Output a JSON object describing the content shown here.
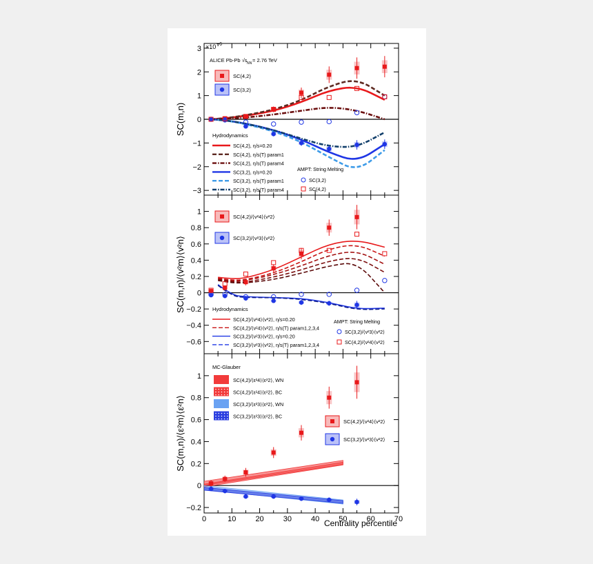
{
  "figure": {
    "x_axis_title": "Centrality percentile",
    "x_ticks": [
      0,
      10,
      20,
      30,
      40,
      50,
      60,
      70
    ]
  },
  "chart_data": [
    {
      "type": "line",
      "panel": "top",
      "ylabel": "SC(m,n)",
      "y_multiplier": "×10",
      "y_multiplier_exp": "−6",
      "xlim": [
        0,
        70
      ],
      "ylim": [
        -3.2,
        3.2
      ],
      "y_ticks": [
        -3,
        -2,
        -1,
        0,
        1,
        2,
        3
      ],
      "header": "ALICE Pb-Pb √s",
      "header_sub": "NN",
      "header_tail": " = 2.76 TeV",
      "data_legend": [
        {
          "label": "SC(4,2)",
          "color": "#e8191b",
          "marker": "square"
        },
        {
          "label": "SC(3,2)",
          "color": "#1f36e5",
          "marker": "circle"
        }
      ],
      "model_title": "Hydrodynamics",
      "model_legend": [
        {
          "label": "SC(4,2), η/s=0.20",
          "color": "#e8191b",
          "dash": "solid"
        },
        {
          "label": "SC(4,2), η/s(T) param1",
          "color": "#5e2a22",
          "dash": "dash"
        },
        {
          "label": "SC(4,2), η/s(T) param4",
          "color": "#6b0f0f",
          "dash": "dashdot"
        },
        {
          "label": "SC(3,2), η/s=0.20",
          "color": "#1f36e5",
          "dash": "solid"
        },
        {
          "label": "SC(3,2), η/s(T) param1",
          "color": "#3d9be8",
          "dash": "dash"
        },
        {
          "label": "SC(3,2), η/s(T) param4",
          "color": "#123f6b",
          "dash": "dashdot"
        }
      ],
      "ampt_title": "AMPT: String Melting",
      "ampt_legend": [
        {
          "label": "SC(3,2)",
          "color": "#1f36e5",
          "marker": "open-circle"
        },
        {
          "label": "SC(4,2)",
          "color": "#e8191b",
          "marker": "open-square"
        }
      ],
      "data_x": [
        2.5,
        7.5,
        15,
        25,
        35,
        45,
        55,
        65
      ],
      "series": [
        {
          "name": "SC(4,2)",
          "kind": "data",
          "values": [
            0.0,
            0.04,
            0.12,
            0.42,
            1.12,
            1.88,
            2.16,
            2.22
          ],
          "errors": [
            0.06,
            0.06,
            0.08,
            0.12,
            0.22,
            0.35,
            0.45,
            0.45
          ],
          "color": "#e8191b",
          "marker": "square"
        },
        {
          "name": "SC(3,2)",
          "kind": "data",
          "values": [
            0.0,
            -0.04,
            -0.3,
            -0.62,
            -1.0,
            -1.25,
            -1.08,
            -1.05
          ],
          "errors": [
            0.04,
            0.05,
            0.07,
            0.1,
            0.12,
            0.15,
            0.2,
            0.2
          ],
          "color": "#1f36e5",
          "marker": "circle"
        },
        {
          "name": "SC(4,2), η/s=0.20",
          "kind": "line",
          "x": [
            2.5,
            7.5,
            15,
            25,
            35,
            45,
            55,
            65
          ],
          "values": [
            0.0,
            0.04,
            0.15,
            0.35,
            0.72,
            1.22,
            1.4,
            0.82
          ],
          "color": "#e8191b",
          "dash": "solid"
        },
        {
          "name": "SC(4,2), η/s(T) param1",
          "kind": "line",
          "x": [
            2.5,
            7.5,
            15,
            25,
            35,
            45,
            55,
            65
          ],
          "values": [
            0.0,
            0.04,
            0.17,
            0.4,
            0.8,
            1.4,
            1.72,
            1.0
          ],
          "color": "#5e2a22",
          "dash": "dash"
        },
        {
          "name": "SC(4,2), η/s(T) param4",
          "kind": "line",
          "x": [
            2.5,
            7.5,
            15,
            25,
            35,
            45,
            55,
            65
          ],
          "values": [
            0.0,
            0.02,
            0.07,
            0.2,
            0.36,
            0.52,
            0.38,
            0.0
          ],
          "color": "#6b0f0f",
          "dash": "dashdot"
        },
        {
          "name": "SC(3,2), η/s=0.20",
          "kind": "line",
          "x": [
            2.5,
            7.5,
            15,
            25,
            35,
            45,
            55,
            65
          ],
          "values": [
            0.0,
            -0.04,
            -0.18,
            -0.45,
            -0.85,
            -1.4,
            -1.8,
            -1.05
          ],
          "color": "#1f36e5",
          "dash": "solid"
        },
        {
          "name": "SC(3,2), η/s(T) param1",
          "kind": "line",
          "x": [
            2.5,
            7.5,
            15,
            25,
            35,
            45,
            55,
            65
          ],
          "values": [
            0.0,
            -0.04,
            -0.2,
            -0.5,
            -0.95,
            -1.6,
            -2.2,
            -1.3
          ],
          "color": "#3d9be8",
          "dash": "dash"
        },
        {
          "name": "SC(3,2), η/s(T) param4",
          "kind": "line",
          "x": [
            2.5,
            7.5,
            15,
            25,
            35,
            45,
            55,
            65
          ],
          "values": [
            0.0,
            -0.04,
            -0.18,
            -0.45,
            -0.82,
            -1.15,
            -1.18,
            -0.55
          ],
          "color": "#123f6b",
          "dash": "dashdot"
        },
        {
          "name": "AMPT SC(3,2)",
          "kind": "data",
          "values": [
            0.0,
            -0.02,
            -0.12,
            -0.2,
            -0.12,
            -0.1,
            0.28,
            0.95
          ],
          "errors": [
            0,
            0,
            0,
            0,
            0,
            0,
            0,
            0
          ],
          "color": "#1f36e5",
          "marker": "open-circle"
        },
        {
          "name": "AMPT SC(4,2)",
          "kind": "data",
          "values": [
            0.0,
            0.02,
            0.12,
            0.42,
            0.92,
            0.92,
            1.3,
            0.95
          ],
          "errors": [
            0,
            0,
            0,
            0,
            0,
            0,
            0,
            0
          ],
          "color": "#e8191b",
          "marker": "open-square"
        }
      ]
    },
    {
      "type": "line",
      "panel": "middle",
      "ylabel": "SC(m,n)/⟨v²m⟩⟨v²n⟩",
      "xlim": [
        0,
        70
      ],
      "ylim": [
        -0.75,
        1.2
      ],
      "y_ticks": [
        -0.6,
        -0.4,
        -0.2,
        0,
        0.2,
        0.4,
        0.6,
        0.8,
        1
      ],
      "y_tick_labels": [
        "−0.6",
        "−0.4",
        "−0.2",
        "0",
        "0.2",
        "0.4",
        "0.6",
        "0.8",
        "1"
      ],
      "data_legend": [
        {
          "label": "SC(4,2)/⟨v²4⟩⟨v²2⟩",
          "color": "#e8191b",
          "marker": "square"
        },
        {
          "label": "SC(3,2)/⟨v²3⟩⟨v²2⟩",
          "color": "#1f36e5",
          "marker": "circle"
        }
      ],
      "model_title": "Hydrodynamics",
      "model_legend": [
        {
          "label": "SC(4,2)/⟨v²4⟩⟨v²2⟩, η/s=0.20",
          "color": "#e8191b",
          "dash": "solid"
        },
        {
          "label": "SC(4,2)/⟨v²4⟩⟨v²2⟩, η/s(T) param1,2,3,4",
          "color": "#c81414",
          "dash": "dash"
        },
        {
          "label": "SC(3,2)/⟨v²3⟩⟨v²2⟩, η/s=0.20",
          "color": "#1f36e5",
          "dash": "solid"
        },
        {
          "label": "SC(3,2)/⟨v²3⟩⟨v²2⟩, η/s(T) param1,2,3,4",
          "color": "#1f36e5",
          "dash": "dash"
        }
      ],
      "ampt_title": "AMPT: String Melting",
      "ampt_legend": [
        {
          "label": "SC(3,2)/⟨v²3⟩⟨v²2⟩",
          "color": "#1f36e5",
          "marker": "open-circle"
        },
        {
          "label": "SC(4,2)/⟨v²4⟩⟨v²2⟩",
          "color": "#e8191b",
          "marker": "open-square"
        }
      ],
      "data_x": [
        2.5,
        7.5,
        15,
        25,
        35,
        45,
        55,
        65
      ],
      "series": [
        {
          "name": "SC(4,2)/⟨v²4⟩⟨v²2⟩",
          "kind": "data",
          "values": [
            0.02,
            0.06,
            0.13,
            0.3,
            0.48,
            0.8,
            0.93,
            0.0
          ],
          "errors": [
            0.03,
            0.03,
            0.04,
            0.05,
            0.07,
            0.1,
            0.15,
            0
          ],
          "color": "#e8191b",
          "marker": "square",
          "points": 7
        },
        {
          "name": "SC(3,2)/⟨v²3⟩⟨v²2⟩",
          "kind": "data",
          "values": [
            -0.03,
            -0.04,
            -0.07,
            -0.1,
            -0.12,
            -0.13,
            -0.15,
            0.0
          ],
          "errors": [
            0.02,
            0.02,
            0.02,
            0.02,
            0.03,
            0.03,
            0.05,
            0
          ],
          "color": "#1f36e5",
          "marker": "circle",
          "points": 7
        },
        {
          "name": "hydro SC(4,2) η/s=0.20",
          "kind": "line",
          "x": [
            5,
            10,
            15,
            25,
            35,
            45,
            55,
            65
          ],
          "values": [
            0.19,
            0.17,
            0.18,
            0.28,
            0.44,
            0.6,
            0.65,
            0.56
          ],
          "color": "#e8191b",
          "dash": "solid"
        },
        {
          "name": "hydro SC(4,2) param1",
          "kind": "line",
          "x": [
            5,
            10,
            15,
            25,
            35,
            45,
            55,
            65
          ],
          "values": [
            0.18,
            0.15,
            0.16,
            0.24,
            0.38,
            0.54,
            0.6,
            0.45
          ],
          "color": "#c81414",
          "dash": "dash"
        },
        {
          "name": "hydro SC(4,2) param2",
          "kind": "line",
          "x": [
            5,
            10,
            15,
            25,
            35,
            45,
            55,
            65
          ],
          "values": [
            0.17,
            0.14,
            0.15,
            0.22,
            0.33,
            0.46,
            0.52,
            0.35
          ],
          "color": "#a31010",
          "dash": "dash"
        },
        {
          "name": "hydro SC(4,2) param3",
          "kind": "line",
          "x": [
            5,
            10,
            15,
            25,
            35,
            45,
            55,
            65
          ],
          "values": [
            0.16,
            0.13,
            0.13,
            0.19,
            0.28,
            0.39,
            0.44,
            0.25
          ],
          "color": "#7a0c0c",
          "dash": "dash"
        },
        {
          "name": "hydro SC(4,2) param4",
          "kind": "line",
          "x": [
            5,
            10,
            15,
            25,
            35,
            45,
            55,
            65
          ],
          "values": [
            0.15,
            0.12,
            0.12,
            0.16,
            0.24,
            0.33,
            0.38,
            0.0
          ],
          "color": "#5a0808",
          "dash": "dash"
        },
        {
          "name": "hydro SC(3,2) η/s=0.20",
          "kind": "line",
          "x": [
            5,
            10,
            15,
            25,
            35,
            45,
            55,
            65
          ],
          "values": [
            0.1,
            -0.03,
            -0.05,
            -0.06,
            -0.07,
            -0.12,
            -0.2,
            -0.19
          ],
          "color": "#1f36e5",
          "dash": "solid"
        },
        {
          "name": "hydro SC(3,2) params",
          "kind": "line",
          "x": [
            5,
            10,
            15,
            25,
            35,
            45,
            55,
            65
          ],
          "values": [
            0.09,
            -0.04,
            -0.06,
            -0.06,
            -0.08,
            -0.13,
            -0.21,
            -0.2
          ],
          "color": "#101e8c",
          "dash": "dash"
        },
        {
          "name": "AMPT SC(3,2) norm",
          "kind": "data",
          "values": [
            -0.02,
            -0.02,
            -0.05,
            -0.05,
            -0.02,
            -0.02,
            0.03,
            0.15
          ],
          "errors": [
            0,
            0,
            0,
            0,
            0,
            0,
            0,
            0
          ],
          "color": "#1f36e5",
          "marker": "open-circle"
        },
        {
          "name": "AMPT SC(4,2) norm",
          "kind": "data",
          "values": [
            0.03,
            0.11,
            0.23,
            0.37,
            0.52,
            0.52,
            0.72,
            0.48
          ],
          "errors": [
            0,
            0,
            0,
            0,
            0,
            0,
            0,
            0
          ],
          "color": "#e8191b",
          "marker": "open-square"
        }
      ]
    },
    {
      "type": "area",
      "panel": "bottom",
      "ylabel": "SC(m,n)/⟨ε²m⟩⟨ε²n⟩",
      "xlim": [
        0,
        70
      ],
      "ylim": [
        -0.25,
        1.2
      ],
      "y_ticks": [
        -0.2,
        0,
        0.2,
        0.4,
        0.6,
        0.8,
        1
      ],
      "y_tick_labels": [
        "−0.2",
        "0",
        "0.2",
        "0.4",
        "0.6",
        "0.8",
        "1"
      ],
      "model_title": "MC-Glauber",
      "model_legend": [
        {
          "label": "SC(4,2)/⟨ε²4⟩⟨ε²2⟩, WN",
          "color": "#f23b3b",
          "fill": "solid"
        },
        {
          "label": "SC(4,2)/⟨ε²4⟩⟨ε²2⟩, BC",
          "color": "#f23b3b",
          "fill": "dotted"
        },
        {
          "label": "SC(3,2)/⟨ε²3⟩⟨ε²2⟩, WN",
          "color": "#6aa2f2",
          "fill": "solid"
        },
        {
          "label": "SC(3,2)/⟨ε²3⟩⟨ε²2⟩, BC",
          "color": "#2b3ee0",
          "fill": "dotted"
        }
      ],
      "data_legend": [
        {
          "label": "SC(4,2)/⟨v²4⟩⟨v²2⟩",
          "color": "#e8191b",
          "marker": "square"
        },
        {
          "label": "SC(3,2)/⟨v²3⟩⟨v²2⟩",
          "color": "#1f36e5",
          "marker": "circle"
        }
      ],
      "data_x": [
        2.5,
        7.5,
        15,
        25,
        35,
        45,
        55
      ],
      "series": [
        {
          "name": "SC(4,2)/⟨v²4⟩⟨v²2⟩",
          "kind": "data",
          "values": [
            0.02,
            0.06,
            0.12,
            0.3,
            0.48,
            0.8,
            0.94
          ],
          "errors": [
            0.03,
            0.03,
            0.04,
            0.05,
            0.07,
            0.1,
            0.15
          ],
          "color": "#e8191b",
          "marker": "square"
        },
        {
          "name": "SC(3,2)/⟨v²3⟩⟨v²2⟩",
          "kind": "data",
          "values": [
            -0.03,
            -0.05,
            -0.1,
            -0.1,
            -0.12,
            -0.13,
            -0.15
          ],
          "errors": [
            0.02,
            0.02,
            0.02,
            0.02,
            0.02,
            0.02,
            0.03
          ],
          "color": "#1f36e5",
          "marker": "circle"
        },
        {
          "name": "Glauber SC(4,2) WN upper",
          "kind": "band",
          "x": [
            0,
            50
          ],
          "values": [
            0.02,
            0.21
          ],
          "color": "#f23b3b"
        },
        {
          "name": "Glauber SC(4,2) BC",
          "kind": "band",
          "x": [
            0,
            50
          ],
          "values": [
            0.0,
            0.2
          ],
          "color": "#f23b3b"
        },
        {
          "name": "Glauber SC(3,2) WN",
          "kind": "band",
          "x": [
            0,
            50
          ],
          "values": [
            -0.02,
            -0.15
          ],
          "color": "#6aa2f2"
        },
        {
          "name": "Glauber SC(3,2) BC",
          "kind": "band",
          "x": [
            0,
            50
          ],
          "values": [
            -0.03,
            -0.15
          ],
          "color": "#2b3ee0"
        }
      ]
    }
  ]
}
